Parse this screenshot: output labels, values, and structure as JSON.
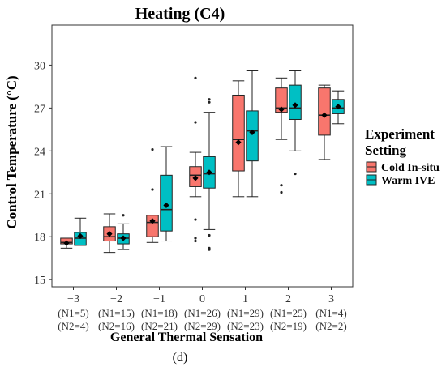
{
  "chart_data": {
    "type": "box",
    "title": "Heating (C4)",
    "xlabel": "General Thermal Sensation",
    "ylabel": "Control Temperature (°C)",
    "caption": "(d)",
    "ylim": [
      14.5,
      32.8
    ],
    "yticks": [
      15,
      18,
      21,
      24,
      27,
      30
    ],
    "categories": [
      "−3",
      "−2",
      "−1",
      "0",
      "1",
      "2",
      "3"
    ],
    "category_counts": [
      [
        "(N1=5)",
        "(N2=4)"
      ],
      [
        "(N1=15)",
        "(N2=16)"
      ],
      [
        "(N1=18)",
        "(N2=21)"
      ],
      [
        "(N1=26)",
        "(N2=29)"
      ],
      [
        "(N1=29)",
        "(N2=23)"
      ],
      [
        "(N1=25)",
        "(N2=19)"
      ],
      [
        "(N1=4)",
        "(N2=2)"
      ]
    ],
    "legend": {
      "title": "Experiment Setting",
      "position": "right"
    },
    "grid": false,
    "series": [
      {
        "name": "Cold In-situ",
        "color": "#F8766D",
        "boxes": [
          {
            "min": 17.2,
            "q1": 17.5,
            "median": 17.6,
            "q3": 17.9,
            "max": 17.9,
            "mean": 17.55,
            "outliers": []
          },
          {
            "min": 16.9,
            "q1": 17.7,
            "median": 18.0,
            "q3": 18.7,
            "max": 19.6,
            "mean": 18.2,
            "outliers": []
          },
          {
            "min": 17.6,
            "q1": 18.0,
            "median": 19.0,
            "q3": 19.5,
            "max": 19.5,
            "mean": 19.1,
            "outliers": [
              21.3,
              24.1
            ]
          },
          {
            "min": 20.8,
            "q1": 21.5,
            "median": 22.3,
            "q3": 22.9,
            "max": 23.9,
            "mean": 22.1,
            "outliers": [
              17.7,
              17.9,
              19.2,
              26.0,
              29.1
            ]
          },
          {
            "min": 20.8,
            "q1": 22.6,
            "median": 24.8,
            "q3": 27.9,
            "max": 28.9,
            "mean": 24.6,
            "outliers": []
          },
          {
            "min": 24.8,
            "q1": 26.7,
            "median": 27.0,
            "q3": 28.4,
            "max": 29.1,
            "mean": 26.9,
            "outliers": [
              21.1,
              21.6
            ]
          },
          {
            "min": 23.4,
            "q1": 25.1,
            "median": 26.5,
            "q3": 28.4,
            "max": 28.6,
            "mean": 26.5,
            "outliers": []
          }
        ]
      },
      {
        "name": "Warm IVE",
        "color": "#00BFC4",
        "boxes": [
          {
            "min": 17.4,
            "q1": 17.4,
            "median": 17.9,
            "q3": 18.3,
            "max": 19.3,
            "mean": 18.05,
            "outliers": []
          },
          {
            "min": 17.1,
            "q1": 17.5,
            "median": 17.9,
            "q3": 18.2,
            "max": 18.9,
            "mean": 17.9,
            "outliers": [
              19.5
            ]
          },
          {
            "min": 17.7,
            "q1": 18.4,
            "median": 19.9,
            "q3": 22.3,
            "max": 24.3,
            "mean": 20.2,
            "outliers": []
          },
          {
            "min": 18.5,
            "q1": 21.4,
            "median": 22.4,
            "q3": 23.6,
            "max": 26.7,
            "mean": 22.5,
            "outliers": [
              17.1,
              17.2,
              18.1,
              27.4,
              27.6
            ]
          },
          {
            "min": 20.8,
            "q1": 23.3,
            "median": 25.4,
            "q3": 26.8,
            "max": 29.6,
            "mean": 25.3,
            "outliers": []
          },
          {
            "min": 24.0,
            "q1": 26.2,
            "median": 27.0,
            "q3": 28.6,
            "max": 29.6,
            "mean": 27.2,
            "outliers": [
              22.4
            ]
          },
          {
            "min": 25.9,
            "q1": 26.6,
            "median": 27.0,
            "q3": 27.6,
            "max": 28.2,
            "mean": 27.1,
            "outliers": []
          }
        ]
      }
    ]
  }
}
